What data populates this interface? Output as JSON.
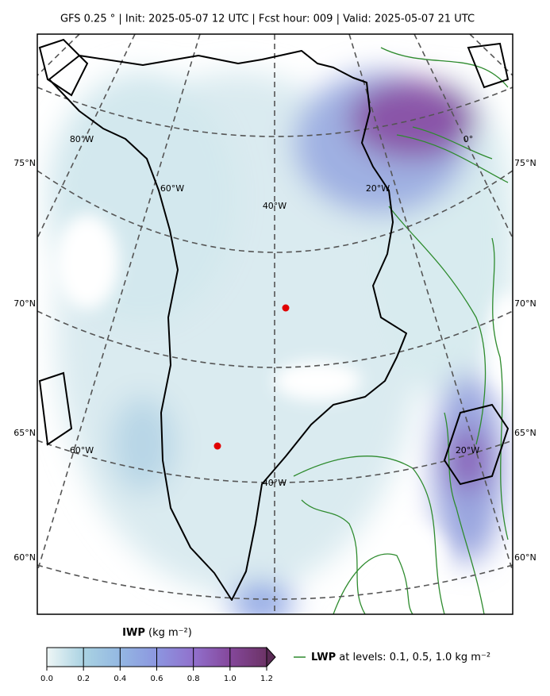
{
  "title": "GFS 0.25 °  |  Init: 2025-05-07 12 UTC  |  Fcst hour: 009  |  Valid: 2025-05-07 21 UTC",
  "map": {
    "lat_labels_left": [
      "75°N",
      "70°N",
      "65°N",
      "60°N"
    ],
    "lat_labels_right": [
      "75°N",
      "70°N",
      "65°N",
      "60°N"
    ],
    "lon_labels": [
      "80°W",
      "60°W",
      "40°W",
      "20°W",
      "0°",
      "60°W",
      "40°W",
      "20°W"
    ]
  },
  "colorbar": {
    "label": "IWP",
    "unit": "(kg m⁻²)",
    "ticks": [
      {
        "value": 0,
        "label": "0.0"
      },
      {
        "value": 0.2,
        "label": "0.2"
      },
      {
        "value": 0.4,
        "label": "0.4"
      },
      {
        "value": 0.6,
        "label": "0.6"
      },
      {
        "value": 0.8,
        "label": "0.8"
      },
      {
        "value": 1.0,
        "label": "1.0"
      },
      {
        "value": 1.2,
        "label": "1.2"
      }
    ]
  },
  "legend": {
    "name": "LWP",
    "text": "at levels: 0.1, 0.5, 1.0  kg m⁻²",
    "color": "#2e8b2e"
  }
}
